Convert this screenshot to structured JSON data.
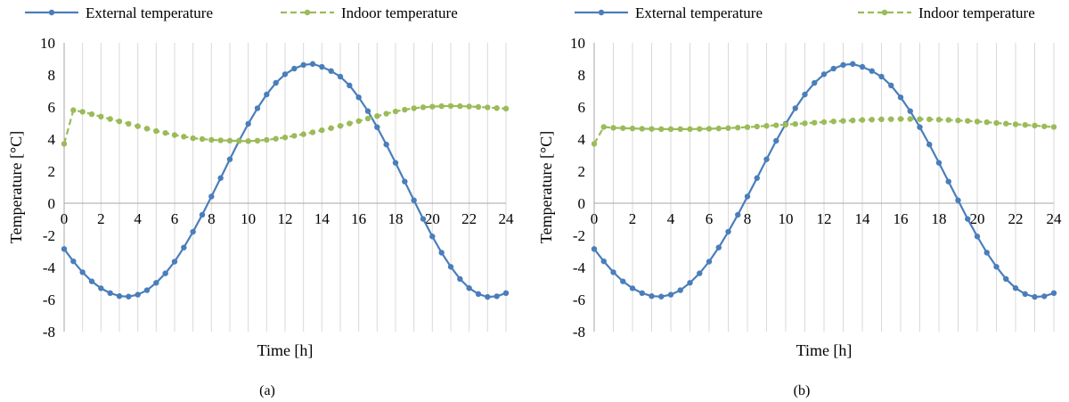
{
  "colors": {
    "external": "#4a7ebb",
    "indoor": "#9bbb59",
    "grid": "#d9d9d9",
    "axis": "#a6a6a6"
  },
  "chart_data": [
    {
      "type": "line",
      "caption": "(a)",
      "xlabel": "Time [h]",
      "ylabel": "Temperature [°C]",
      "xlim": [
        0,
        24
      ],
      "ylim": [
        -8,
        10
      ],
      "x_ticks": [
        "0",
        "2",
        "4",
        "6",
        "8",
        "10",
        "12",
        "14",
        "16",
        "18",
        "20",
        "22",
        "24"
      ],
      "y_ticks": [
        "10",
        "8",
        "6",
        "4",
        "2",
        "0",
        "-2",
        "-4",
        "-6",
        "-8"
      ],
      "grid": "vertical",
      "legend": "top-left",
      "series": [
        {
          "name": "External temperature",
          "style": "solid",
          "x": [
            0,
            0.5,
            1,
            1.5,
            2,
            2.5,
            3,
            3.5,
            4,
            4.5,
            5,
            5.5,
            6,
            6.5,
            7,
            7.5,
            8,
            8.5,
            9,
            9.5,
            10,
            10.5,
            11,
            11.5,
            12,
            12.5,
            13,
            13.5,
            14,
            14.5,
            15,
            15.5,
            16,
            16.5,
            17,
            17.5,
            18,
            18.5,
            19,
            19.5,
            20,
            20.5,
            21,
            21.5,
            22,
            22.5,
            23,
            23.5,
            24
          ],
          "y": [
            -2.85,
            -3.62,
            -4.3,
            -4.87,
            -5.3,
            -5.6,
            -5.79,
            -5.82,
            -5.7,
            -5.42,
            -4.96,
            -4.37,
            -3.64,
            -2.76,
            -1.78,
            -0.72,
            0.42,
            1.57,
            2.74,
            3.89,
            4.95,
            5.92,
            6.78,
            7.5,
            8.04,
            8.39,
            8.62,
            8.68,
            8.5,
            8.24,
            7.89,
            7.34,
            6.6,
            5.74,
            4.74,
            3.66,
            2.52,
            1.35,
            0.18,
            -0.98,
            -2.07,
            -3.08,
            -3.96,
            -4.72,
            -5.29,
            -5.66,
            -5.84,
            -5.8,
            -5.6
          ],
          "note_scale_ok": true
        },
        {
          "name": "Indoor temperature",
          "style": "dashed",
          "x": [
            0,
            0.5,
            1,
            1.5,
            2,
            2.5,
            3,
            3.5,
            4,
            4.5,
            5,
            5.5,
            6,
            6.5,
            7,
            7.5,
            8,
            8.5,
            9,
            9.5,
            10,
            10.5,
            11,
            11.5,
            12,
            12.5,
            13,
            13.5,
            14,
            14.5,
            15,
            15.5,
            16,
            16.5,
            17,
            17.5,
            18,
            18.5,
            19,
            19.5,
            20,
            20.5,
            21,
            21.5,
            22,
            22.5,
            23,
            23.5,
            24
          ],
          "y": [
            3.7,
            5.8,
            5.7,
            5.55,
            5.4,
            5.25,
            5.1,
            4.95,
            4.8,
            4.65,
            4.5,
            4.38,
            4.25,
            4.15,
            4.05,
            4.0,
            3.95,
            3.92,
            3.9,
            3.88,
            3.87,
            3.9,
            3.95,
            4.02,
            4.1,
            4.2,
            4.3,
            4.42,
            4.55,
            4.68,
            4.82,
            4.97,
            5.12,
            5.28,
            5.43,
            5.58,
            5.72,
            5.83,
            5.92,
            5.98,
            6.02,
            6.05,
            6.06,
            6.05,
            6.03,
            6.0,
            5.97,
            5.93,
            5.9
          ]
        }
      ]
    },
    {
      "type": "line",
      "caption": "(b)",
      "xlabel": "Time [h]",
      "ylabel": "Temperature [°C]",
      "xlim": [
        0,
        24
      ],
      "ylim": [
        -8,
        10
      ],
      "x_ticks": [
        "0",
        "2",
        "4",
        "6",
        "8",
        "10",
        "12",
        "14",
        "16",
        "18",
        "20",
        "22",
        "24"
      ],
      "y_ticks": [
        "10",
        "8",
        "6",
        "4",
        "2",
        "0",
        "-2",
        "-4",
        "-6",
        "-8"
      ],
      "grid": "vertical",
      "legend": "top-right",
      "series": [
        {
          "name": "External temperature",
          "style": "solid",
          "x": [
            0,
            0.5,
            1,
            1.5,
            2,
            2.5,
            3,
            3.5,
            4,
            4.5,
            5,
            5.5,
            6,
            6.5,
            7,
            7.5,
            8,
            8.5,
            9,
            9.5,
            10,
            10.5,
            11,
            11.5,
            12,
            12.5,
            13,
            13.5,
            14,
            14.5,
            15,
            15.5,
            16,
            16.5,
            17,
            17.5,
            18,
            18.5,
            19,
            19.5,
            20,
            20.5,
            21,
            21.5,
            22,
            22.5,
            23,
            23.5,
            24
          ],
          "y": [
            -2.85,
            -3.62,
            -4.3,
            -4.87,
            -5.3,
            -5.6,
            -5.79,
            -5.82,
            -5.7,
            -5.42,
            -4.96,
            -4.37,
            -3.64,
            -2.76,
            -1.78,
            -0.72,
            0.42,
            1.57,
            2.74,
            3.89,
            4.95,
            5.92,
            6.78,
            7.5,
            8.04,
            8.39,
            8.62,
            8.68,
            8.5,
            8.24,
            7.89,
            7.34,
            6.6,
            5.74,
            4.74,
            3.66,
            2.52,
            1.35,
            0.18,
            -0.98,
            -2.07,
            -3.08,
            -3.96,
            -4.72,
            -5.29,
            -5.66,
            -5.84,
            -5.8,
            -5.6
          ]
        },
        {
          "name": "Indoor temperature",
          "style": "dashed",
          "x": [
            0,
            0.5,
            1,
            1.5,
            2,
            2.5,
            3,
            3.5,
            4,
            4.5,
            5,
            5.5,
            6,
            6.5,
            7,
            7.5,
            8,
            8.5,
            9,
            9.5,
            10,
            10.5,
            11,
            11.5,
            12,
            12.5,
            13,
            13.5,
            14,
            14.5,
            15,
            15.5,
            16,
            16.5,
            17,
            17.5,
            18,
            18.5,
            19,
            19.5,
            20,
            20.5,
            21,
            21.5,
            22,
            22.5,
            23,
            23.5,
            24
          ],
          "y": [
            3.7,
            4.75,
            4.7,
            4.68,
            4.66,
            4.64,
            4.63,
            4.62,
            4.62,
            4.62,
            4.62,
            4.63,
            4.64,
            4.66,
            4.68,
            4.71,
            4.74,
            4.78,
            4.82,
            4.86,
            4.9,
            4.94,
            4.98,
            5.02,
            5.06,
            5.1,
            5.13,
            5.16,
            5.19,
            5.21,
            5.23,
            5.24,
            5.25,
            5.25,
            5.24,
            5.23,
            5.21,
            5.19,
            5.16,
            5.13,
            5.09,
            5.05,
            5.0,
            4.96,
            4.92,
            4.88,
            4.84,
            4.79,
            4.75
          ]
        }
      ]
    }
  ]
}
